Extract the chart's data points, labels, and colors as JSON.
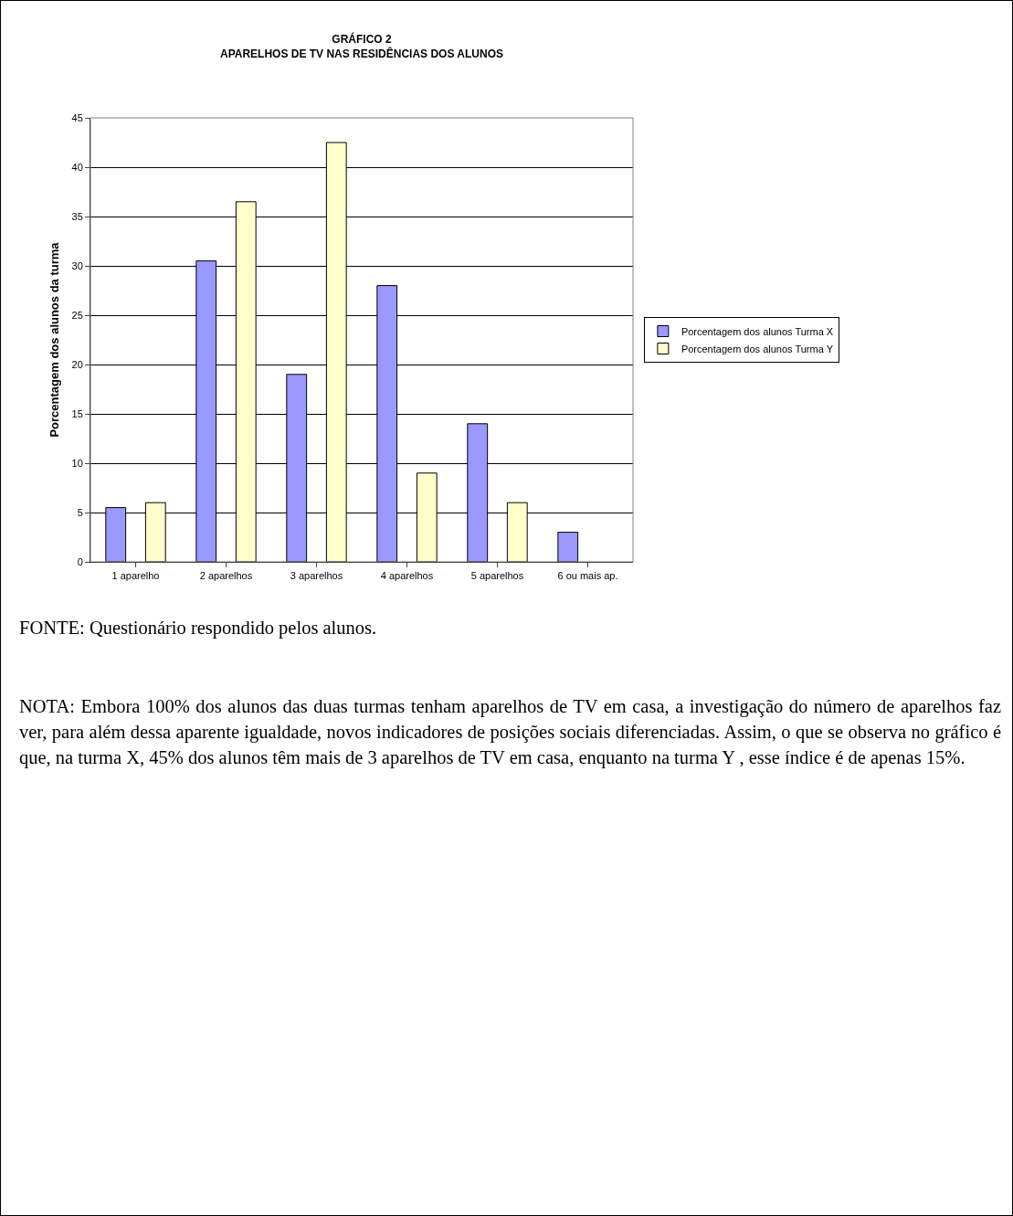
{
  "chart_data": {
    "type": "bar",
    "title": "GRÁFICO 2\nAPARELHOS DE TV NAS RESIDÊNCIAS DOS ALUNOS",
    "ylabel": "Porcentagem dos alunos da turma",
    "categories": [
      "1 aparelho",
      "2 aparelhos",
      "3 aparelhos",
      "4 aparelhos",
      "5 aparelhos",
      "6 ou mais ap."
    ],
    "series": [
      {
        "name": "Porcentagem dos alunos Turma X",
        "color": "#9999ff",
        "values": [
          5.5,
          30.5,
          19,
          28,
          14,
          3
        ]
      },
      {
        "name": "Porcentagem dos alunos Turma Y",
        "color": "#ffffcc",
        "values": [
          6,
          36.5,
          42.5,
          9,
          6,
          null
        ]
      }
    ],
    "ylim": [
      0,
      45
    ],
    "yticks": [
      0,
      5,
      10,
      15,
      20,
      25,
      30,
      35,
      40,
      45
    ],
    "grid": "y",
    "legend": "right",
    "annotations": [
      "FONTE: Questionário respondido pelos alunos.",
      "NOTA:  Embora 100% dos alunos das duas turmas tenham aparelhos de TV em casa, a investigação do número de aparelhos faz ver, para além dessa aparente igualdade, novos indicadores de posições sociais diferenciadas.  Assim, o que se observa no gráfico é que, na turma X,  45% dos alunos têm mais de 3 aparelhos de TV em casa, enquanto na turma Y , esse índice é de apenas 15%."
    ]
  }
}
